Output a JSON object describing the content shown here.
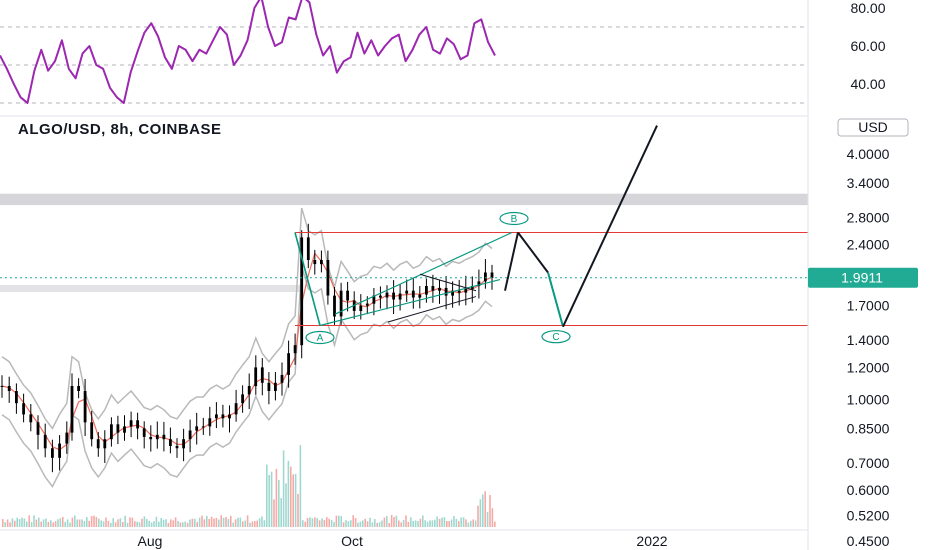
{
  "header": {
    "symbol_title": "ALGO/USD, 8h, COINBASE",
    "currency_badge": "USD"
  },
  "price_tag": {
    "value": "1.9911",
    "color": "#22ab94"
  },
  "colors": {
    "rsi_line": "#9c27b0",
    "wave": "#089981",
    "range_lines": "#e53935",
    "ma": "#f06a5a",
    "bands": "#b9b9b9",
    "candles": "#000000",
    "shaded_zone": "#d6d6da"
  },
  "chart_data": [
    {
      "type": "line",
      "panel": "rsi",
      "y_ticks": [
        "80.00",
        "60.00",
        "40.00"
      ],
      "levels": [
        70,
        50,
        30
      ],
      "series": [
        {
          "values": [
            55,
            48,
            40,
            33,
            30,
            47,
            58,
            47,
            52,
            63,
            48,
            43,
            56,
            60,
            50,
            48,
            38,
            33,
            30,
            46,
            57,
            67,
            72,
            65,
            54,
            48,
            60,
            58,
            52,
            58,
            56,
            63,
            70,
            66,
            50,
            55,
            63,
            80,
            86,
            70,
            60,
            62,
            75,
            74,
            86,
            83,
            66,
            55,
            60,
            46,
            52,
            54,
            67,
            56,
            63,
            55,
            60,
            64,
            66,
            52,
            58,
            66,
            70,
            58,
            56,
            64,
            61,
            53,
            55,
            72,
            74,
            62,
            55
          ]
        }
      ]
    },
    {
      "type": "candlestick",
      "panel": "price",
      "title": "ALGO/USD, 8h, COINBASE",
      "y_scale": "log",
      "y_ticks": [
        "4.0000",
        "3.4000",
        "2.8000",
        "2.4000",
        "1.7000",
        "1.4000",
        "1.2000",
        "1.0000",
        "0.8500",
        "0.7000",
        "0.6000",
        "0.5200",
        "0.4500"
      ],
      "x_ticks": [
        "Aug",
        "Oct",
        "2022"
      ],
      "last_price": 1.9911,
      "close_series": [
        1.08,
        1.05,
        0.88,
        0.8,
        0.76,
        0.8,
        0.87,
        0.83,
        0.86,
        0.89,
        0.85,
        0.81,
        0.8,
        0.82,
        0.8,
        0.77,
        0.76,
        0.8,
        0.84,
        0.86,
        0.86,
        0.9,
        0.92,
        0.9,
        0.92,
        0.98,
        1.03,
        1.08,
        1.2,
        1.1,
        1.05,
        1.1,
        1.15,
        1.3,
        1.36,
        2.5,
        2.2,
        2.15,
        2.2,
        1.8,
        1.6,
        1.85,
        1.75,
        1.65,
        1.7,
        1.72,
        1.8,
        1.78,
        1.83,
        1.76,
        1.82,
        1.85,
        1.78,
        1.81,
        1.9,
        1.85,
        1.88,
        1.8,
        1.85,
        1.83,
        1.87,
        1.9,
        1.95,
        2.05,
        1.99
      ],
      "wave_labels": [
        "A",
        "B",
        "C"
      ],
      "wave_points": [
        {
          "label": "A",
          "y": 1.52
        },
        {
          "label": "B",
          "y": 2.57
        },
        {
          "label": "C",
          "y": 1.51
        }
      ],
      "projection": [
        1.85,
        2.57,
        1.51,
        4.7
      ],
      "range_levels": [
        2.57,
        1.52
      ],
      "shaded_zone": [
        3.0,
        3.2
      ],
      "volume_present": true
    }
  ]
}
